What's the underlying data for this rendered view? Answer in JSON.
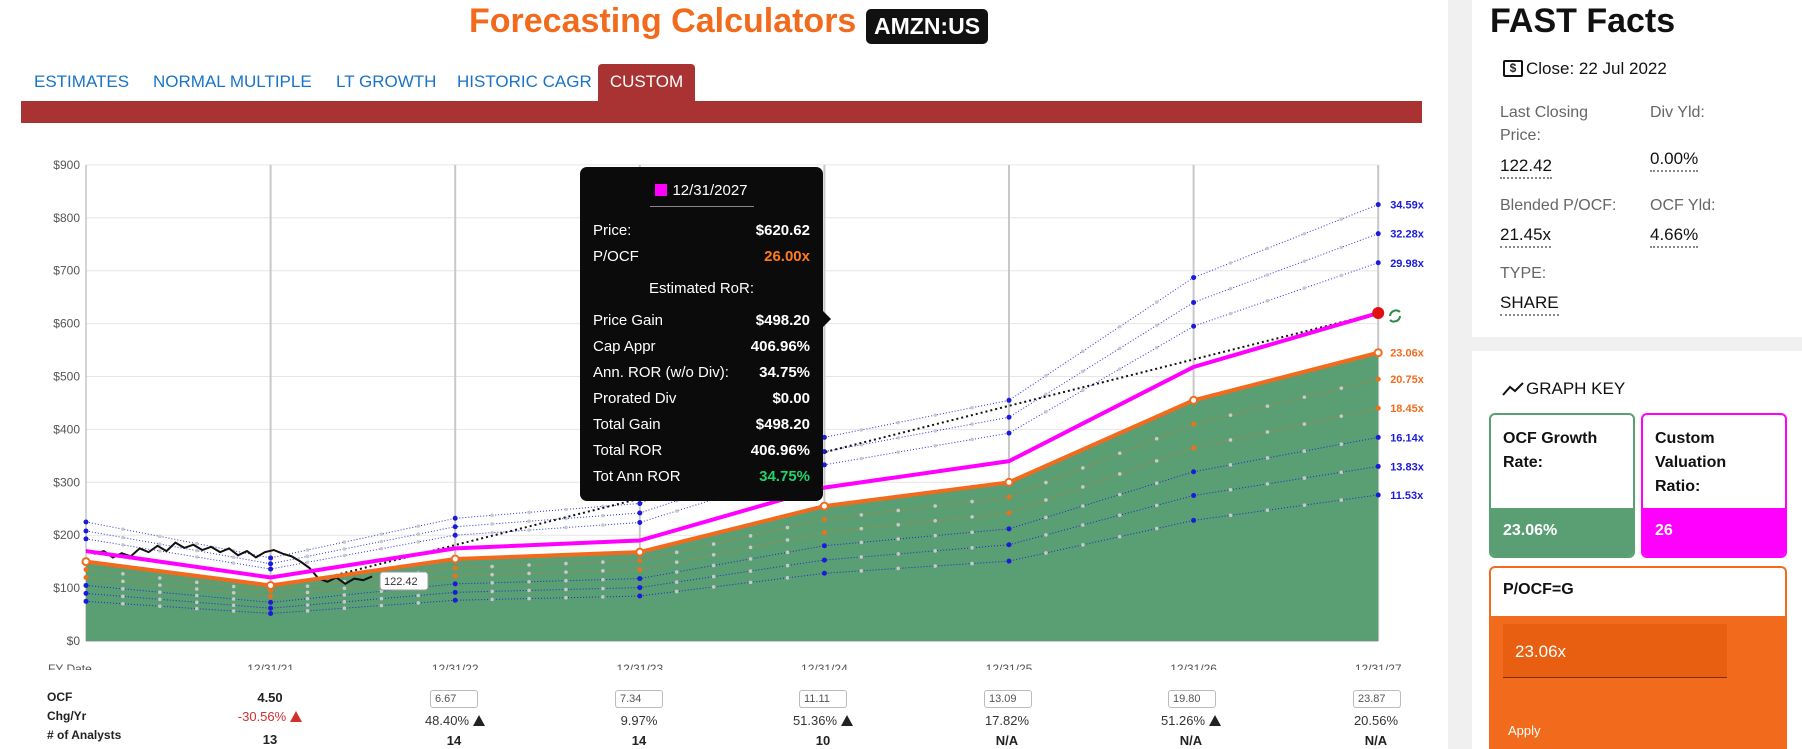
{
  "header": {
    "title": "Forecasting Calculators",
    "ticker": "AMZN:US"
  },
  "tabs": [
    {
      "label": "ESTIMATES"
    },
    {
      "label": "NORMAL MULTIPLE"
    },
    {
      "label": "LT GROWTH"
    },
    {
      "label": "HISTORIC CAGR"
    },
    {
      "label": "CUSTOM",
      "active": true
    }
  ],
  "colors": {
    "brand_orange": "#f26b1d",
    "tab_bar_red": "#a93232",
    "ocf_green": "#5a9e74",
    "custom_magenta": "#ff00ff",
    "link_blue": "#1a73c7"
  },
  "chart_data": {
    "type": "area",
    "x_tick_labels": [
      "FY Date",
      "12/31/21",
      "12/31/22",
      "12/31/23",
      "12/31/24",
      "12/31/25",
      "12/31/26",
      "12/31/27"
    ],
    "y_tick_labels": [
      "$900",
      "$800",
      "$700",
      "$600",
      "$500",
      "$400",
      "$300",
      "$200",
      "$100",
      "$0"
    ],
    "ylim": [
      0,
      900
    ],
    "x": [
      0,
      1,
      2,
      3,
      4,
      5,
      6,
      7
    ],
    "series": [
      {
        "name": "",
        "values": [
          150,
          105,
          155,
          168,
          255,
          300,
          455,
          545
        ]
      },
      {
        "name": "",
        "values": [
          170,
          120,
          175,
          190,
          290,
          340,
          518,
          620
        ]
      }
    ],
    "multiple_lines": [
      {
        "label": "34.59x",
        "color": "#1a1adb",
        "values": [
          225,
          157,
          232,
          260,
          385,
          455,
          687,
          825
        ]
      },
      {
        "label": "32.28x",
        "color": "#1a1adb",
        "values": [
          208,
          146,
          216,
          242,
          358,
          423,
          640,
          770
        ]
      },
      {
        "label": "29.98x",
        "color": "#1a1adb",
        "values": [
          193,
          136,
          200,
          224,
          333,
          393,
          595,
          715
        ]
      },
      {
        "label": "23.06x",
        "color": "#f26b1d",
        "values": [
          150,
          105,
          155,
          168,
          255,
          300,
          455,
          545
        ]
      },
      {
        "label": "20.75x",
        "color": "#e8731f",
        "values": [
          135,
          95,
          138,
          152,
          230,
          272,
          410,
          495
        ]
      },
      {
        "label": "18.45x",
        "color": "#e8731f",
        "values": [
          120,
          84,
          123,
          135,
          205,
          242,
          365,
          440
        ]
      },
      {
        "label": "16.14x",
        "color": "#1a1adb",
        "values": [
          105,
          73,
          108,
          118,
          180,
          212,
          320,
          385
        ]
      },
      {
        "label": "13.83x",
        "color": "#1a1adb",
        "values": [
          90,
          62,
          92,
          101,
          153,
          182,
          275,
          330
        ]
      },
      {
        "label": "11.53x",
        "color": "#1a1adb",
        "values": [
          75,
          52,
          77,
          85,
          128,
          151,
          228,
          276
        ]
      }
    ],
    "price_history_label": "122.42",
    "trend_endpoints": [
      [
        1.3,
        120
      ],
      [
        7,
        620
      ]
    ]
  },
  "tooltip": {
    "date": "12/31/2027",
    "price_label": "Price:",
    "price": "$620.62",
    "pocf_label": "P/OCF",
    "pocf": "26.00x",
    "header": "Estimated RoR:",
    "rows": [
      {
        "label": "Price Gain",
        "value": "$498.20"
      },
      {
        "label": "Cap Appr",
        "value": "406.96%"
      },
      {
        "label": "Ann. ROR (w/o Div):",
        "value": "34.75%"
      },
      {
        "label": "Prorated Div",
        "value": "$0.00"
      },
      {
        "label": "Total Gain",
        "value": "$498.20"
      },
      {
        "label": "Total ROR",
        "value": "406.96%"
      },
      {
        "label": "Tot Ann ROR",
        "value": "34.75%"
      }
    ]
  },
  "table": {
    "labels": {
      "ocf": "OCF",
      "chg": "Chg/Yr",
      "analysts": "# of Analysts"
    },
    "first": {
      "ocf": "4.50",
      "chg": "-30.56%",
      "analysts": "13"
    },
    "cols": [
      {
        "ocf": "6.67",
        "chg": "48.40%",
        "warn": true,
        "analysts": "14"
      },
      {
        "ocf": "7.34",
        "chg": "9.97%",
        "warn": false,
        "analysts": "14"
      },
      {
        "ocf": "11.11",
        "chg": "51.36%",
        "warn": true,
        "analysts": "10"
      },
      {
        "ocf": "13.09",
        "chg": "17.82%",
        "warn": false,
        "analysts": "N/A"
      },
      {
        "ocf": "19.80",
        "chg": "51.26%",
        "warn": true,
        "analysts": "N/A"
      },
      {
        "ocf": "23.87",
        "chg": "20.56%",
        "warn": false,
        "analysts": "N/A"
      }
    ]
  },
  "fast_facts": {
    "title": "FAST Facts",
    "close": "Close: 22 Jul 2022",
    "last_closing_label_1": "Last Closing",
    "last_closing_label_2": "Price:",
    "last_closing_value": "122.42",
    "div_yld_label": "Div Yld:",
    "div_yld_value": "0.00%",
    "blended_label": "Blended P/OCF:",
    "blended_value": "21.45x",
    "ocf_yld_label": "OCF Yld:",
    "ocf_yld_value": "4.66%",
    "type_label": "TYPE:",
    "type_value": "SHARE"
  },
  "graph_key": {
    "title": "GRAPH KEY",
    "ocf_growth_l1": "OCF Growth",
    "ocf_growth_l2": "Rate:",
    "ocf_growth_value": "23.06%",
    "custom_l1": "Custom",
    "custom_l2": "Valuation",
    "custom_l3": "Ratio:",
    "custom_value": "26",
    "pocf_title": "P/OCF=G",
    "pocf_input": "23.06x",
    "apply_label": "Apply"
  }
}
